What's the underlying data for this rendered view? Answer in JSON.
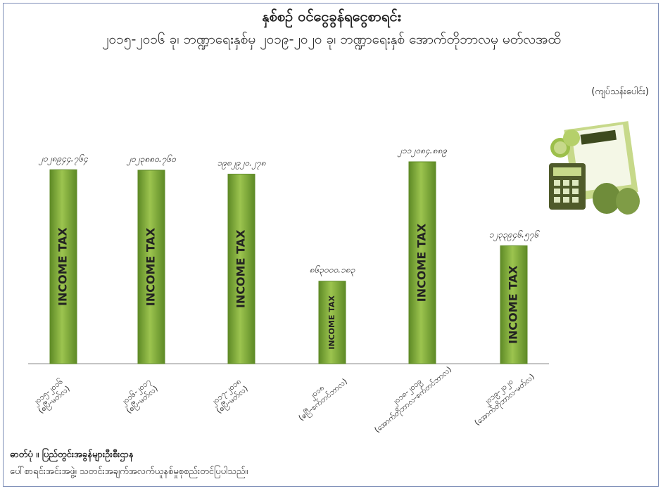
{
  "title": "နှစ်စဉ် ဝင်ငွေခွန်ရငွေစာရင်း",
  "subtitle": "၂၀၁၅-၂၀၁၆ ခု၊ ဘဏ္ဍာရေးနှစ်မှ ၂၀၁၉-၂၀၂၀ ခု၊ ဘဏ္ဍာရေးနှစ် အောက်တိုဘာလမှ မတ်လအထိ",
  "unit": "(ကျပ်သန်းပေါင်း)",
  "source_line1": "ဓာတ်ပုံ ။ ပြည်တွင်းအခွန်များဦးစီးဌာန",
  "source_line2": "ပေါ်စာရင်းအင်းအဖွဲ့၊ သတင်းအချက်အလက်ယူနစ်မှုစုစည်းတင်ပြပါသည်။",
  "chart_data": {
    "type": "bar",
    "title": "နှစ်စဉ် ဝင်ငွေခွန်ရငွေစာရင်း",
    "ylabel": "(ကျပ်သန်းပေါင်း)",
    "xlabel": "",
    "ylim": [
      0,
      2500000
    ],
    "grid": false,
    "categories": [
      "၂၀၁၅-၂၀၁၆ (ဧပြီ-မတ်လ)",
      "၂၀၁၆-၂၀၁၇ (ဧပြီ-မတ်လ)",
      "၂၀၁၇-၂၀၁၈ (ဧပြီ-မတ်လ)",
      "၂၀၁၈ (ဧပြီ-စက်တင်ဘာလ)",
      "၂၀၁၈-၂၀၁၉ (အောက်တိုဘာလ-စက်တင်ဘာလ)",
      "၂၀၁၉-၂၀၂၀ (အောက်တိုဘာလ-မတ်လ)"
    ],
    "values": [
      2028944,
      2023880,
      1982920,
      863000,
      2112084,
      1233946
    ],
    "value_labels": [
      "၂၀၂၈၉၄၄.၇၆၄",
      "၂၀၂၃၈၈၀.၇၆၀",
      "၁၉၈၂၉၂၀.၂၇၈",
      "၈၆၃၀၀၀.၁၈၃",
      "၂၁၁၂၀၈၄.၈၈၉",
      "၁၂၃၃၉၄၆.၅၇၆"
    ],
    "bar_text": "INCOME TAX",
    "bar_color": "#7aa63a"
  }
}
